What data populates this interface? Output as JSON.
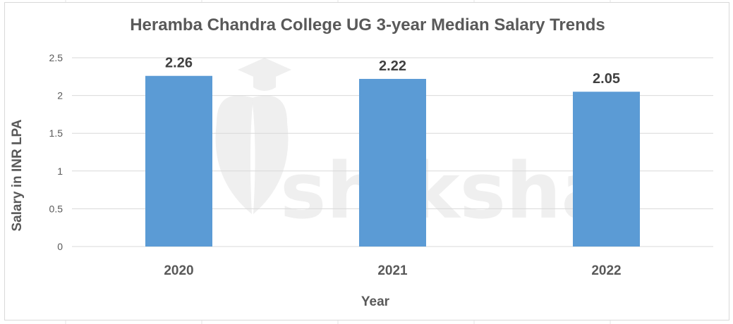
{
  "chart_data": {
    "type": "bar",
    "title": "Heramba Chandra College UG 3-year Median Salary Trends",
    "xlabel": "Year",
    "ylabel": "Salary in INR LPA",
    "categories": [
      "2020",
      "2021",
      "2022"
    ],
    "values": [
      2.26,
      2.22,
      2.05
    ],
    "value_labels": [
      "2.26",
      "2.22",
      "2.05"
    ],
    "yticks": [
      "0",
      "0.5",
      "1",
      "1.5",
      "2",
      "2.5"
    ],
    "ylim": [
      0,
      2.5
    ],
    "grid": true,
    "legend": "none",
    "bar_color": "#5b9bd5",
    "gridline_color": "#d9d9d9",
    "text_color": "#595959"
  },
  "watermark": {
    "text": "shiksha"
  }
}
